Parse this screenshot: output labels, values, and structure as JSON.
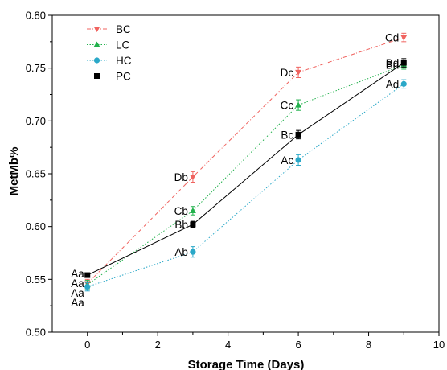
{
  "chart_data": {
    "type": "line",
    "xlabel": "Storage Time (Days)",
    "ylabel": "MetMb%",
    "xlim": [
      -1,
      10
    ],
    "ylim": [
      0.5,
      0.8
    ],
    "xticks": [
      0,
      2,
      4,
      6,
      8,
      10
    ],
    "yticks": [
      "0.50",
      "0.55",
      "0.60",
      "0.65",
      "0.70",
      "0.75",
      "0.80"
    ],
    "x": [
      0,
      3,
      6,
      9
    ],
    "legend_position": "top-left",
    "grid": false,
    "series": [
      {
        "name": "BC",
        "color": "#f0635f",
        "marker": "triangle-down",
        "line": "dash-dot",
        "values": [
          0.546,
          0.647,
          0.746,
          0.779
        ],
        "errors": [
          0.004,
          0.005,
          0.005,
          0.004
        ],
        "labels": [
          "Aa",
          "Db",
          "Dc",
          "Cd"
        ]
      },
      {
        "name": "LC",
        "color": "#22b14c",
        "marker": "triangle-up",
        "line": "dotted",
        "values": [
          0.545,
          0.615,
          0.715,
          0.753
        ],
        "errors": [
          0.004,
          0.004,
          0.005,
          0.004
        ],
        "labels": [
          "Aa",
          "Cb",
          "Cc",
          "Bd"
        ]
      },
      {
        "name": "HC",
        "color": "#2aa8c8",
        "marker": "circle",
        "line": "dotted",
        "values": [
          0.543,
          0.576,
          0.663,
          0.735
        ],
        "errors": [
          0.004,
          0.005,
          0.005,
          0.004
        ],
        "labels": [
          "Aa",
          "Ab",
          "Ac",
          "Ad"
        ]
      },
      {
        "name": "PC",
        "color": "#000000",
        "marker": "square",
        "line": "solid",
        "values": [
          0.554,
          0.602,
          0.687,
          0.755
        ],
        "errors": [
          0.002,
          0.003,
          0.004,
          0.004
        ],
        "labels": [
          "Aa",
          "Bb",
          "Bc",
          "Bd"
        ]
      }
    ]
  }
}
